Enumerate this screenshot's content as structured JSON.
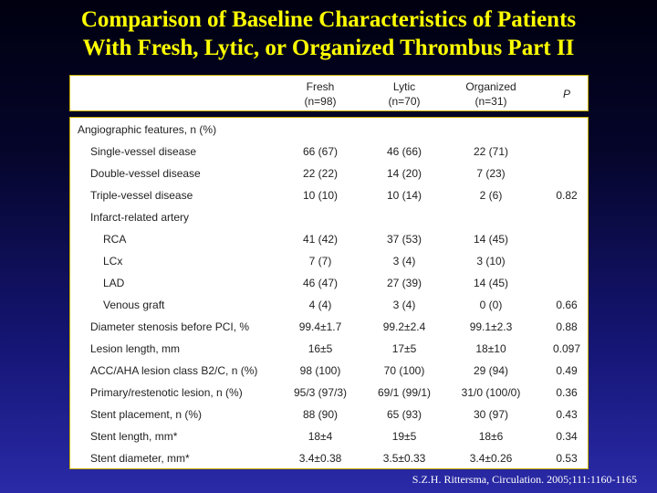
{
  "title_line1": "Comparison of Baseline Characteristics of Patients",
  "title_line2": "With Fresh, Lytic, or Organized Thrombus Part II",
  "columns": [
    {
      "name": "Fresh",
      "n": "(n=98)"
    },
    {
      "name": "Lytic",
      "n": "(n=70)"
    },
    {
      "name": "Organized",
      "n": "(n=31)"
    },
    {
      "name": "P",
      "n": ""
    }
  ],
  "rows": [
    {
      "label": "Angiographic features, n (%)",
      "indent": 0,
      "fresh": "",
      "lytic": "",
      "organized": "",
      "p": ""
    },
    {
      "label": "Single-vessel disease",
      "indent": 1,
      "fresh": "66 (67)",
      "lytic": "46 (66)",
      "organized": "22 (71)",
      "p": ""
    },
    {
      "label": "Double-vessel disease",
      "indent": 1,
      "fresh": "22 (22)",
      "lytic": "14 (20)",
      "organized": "7 (23)",
      "p": ""
    },
    {
      "label": "Triple-vessel disease",
      "indent": 1,
      "fresh": "10 (10)",
      "lytic": "10 (14)",
      "organized": "2 (6)",
      "p": "0.82"
    },
    {
      "label": "Infarct-related artery",
      "indent": 1,
      "fresh": "",
      "lytic": "",
      "organized": "",
      "p": ""
    },
    {
      "label": "RCA",
      "indent": 2,
      "fresh": "41 (42)",
      "lytic": "37 (53)",
      "organized": "14 (45)",
      "p": ""
    },
    {
      "label": "LCx",
      "indent": 2,
      "fresh": "7 (7)",
      "lytic": "3 (4)",
      "organized": "3 (10)",
      "p": ""
    },
    {
      "label": "LAD",
      "indent": 2,
      "fresh": "46 (47)",
      "lytic": "27 (39)",
      "organized": "14 (45)",
      "p": ""
    },
    {
      "label": "Venous graft",
      "indent": 2,
      "fresh": "4 (4)",
      "lytic": "3 (4)",
      "organized": "0 (0)",
      "p": "0.66"
    },
    {
      "label": "Diameter stenosis before PCI, %",
      "indent": 1,
      "fresh": "99.4±1.7",
      "lytic": "99.2±2.4",
      "organized": "99.1±2.3",
      "p": "0.88"
    },
    {
      "label": "Lesion length, mm",
      "indent": 1,
      "fresh": "16±5",
      "lytic": "17±5",
      "organized": "18±10",
      "p": "0.097"
    },
    {
      "label": "ACC/AHA lesion class B2/C, n (%)",
      "indent": 1,
      "fresh": "98 (100)",
      "lytic": "70 (100)",
      "organized": "29 (94)",
      "p": "0.49"
    },
    {
      "label": "Primary/restenotic lesion, n (%)",
      "indent": 1,
      "fresh": "95/3 (97/3)",
      "lytic": "69/1 (99/1)",
      "organized": "31/0 (100/0)",
      "p": "0.36"
    },
    {
      "label": "Stent placement, n (%)",
      "indent": 1,
      "fresh": "88 (90)",
      "lytic": "65 (93)",
      "organized": "30 (97)",
      "p": "0.43"
    },
    {
      "label": "Stent length, mm*",
      "indent": 1,
      "fresh": "18±4",
      "lytic": "19±5",
      "organized": "18±6",
      "p": "0.34"
    },
    {
      "label": "Stent diameter, mm*",
      "indent": 1,
      "fresh": "3.4±0.38",
      "lytic": "3.5±0.33",
      "organized": "3.4±0.26",
      "p": "0.53"
    }
  ],
  "citation": "S.Z.H. Rittersma, Circulation. 2005;111:1160-1165"
}
